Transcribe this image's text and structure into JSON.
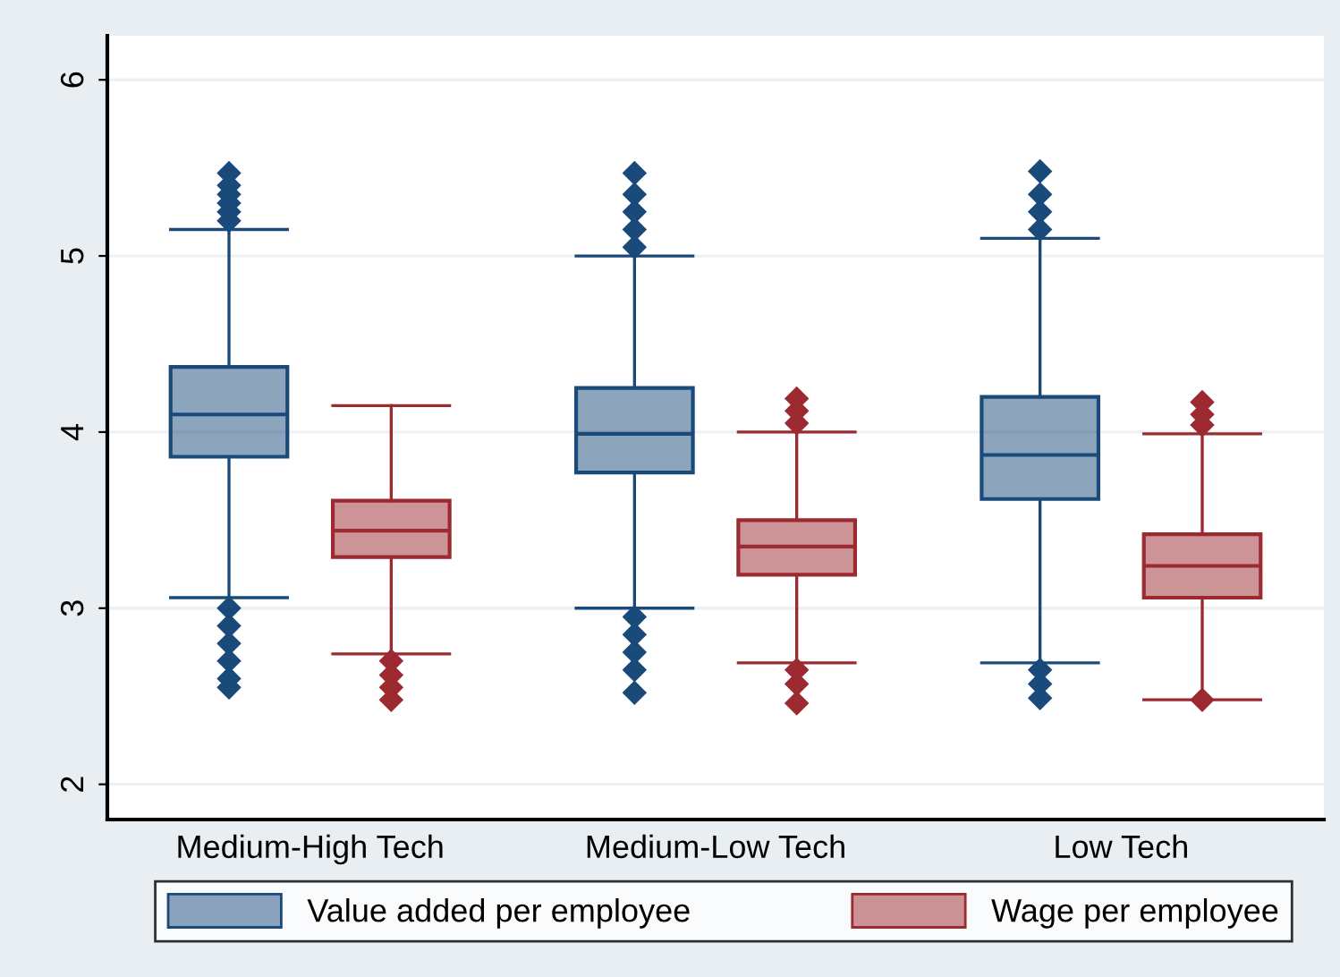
{
  "chart_data": {
    "type": "box",
    "categories": [
      "Medium-High Tech",
      "Medium-Low Tech",
      "Low Tech"
    ],
    "series": [
      {
        "name": "Value added per employee",
        "color": "#1a4a7a",
        "boxes": [
          {
            "low": 3.06,
            "q1": 3.86,
            "median": 4.1,
            "q3": 4.37,
            "high": 5.15,
            "outliers": [
              5.2,
              5.25,
              5.3,
              5.35,
              5.4,
              5.47,
              3.0,
              2.9,
              2.8,
              2.7,
              2.6,
              2.55
            ]
          },
          {
            "low": 3.0,
            "q1": 3.77,
            "median": 3.99,
            "q3": 4.25,
            "high": 5.0,
            "outliers": [
              5.05,
              5.15,
              5.25,
              5.35,
              5.47,
              2.95,
              2.85,
              2.75,
              2.65,
              2.52
            ]
          },
          {
            "low": 2.69,
            "q1": 3.62,
            "median": 3.87,
            "q3": 4.2,
            "high": 5.1,
            "outliers": [
              5.15,
              5.25,
              5.35,
              5.48,
              2.65,
              2.57,
              2.49
            ]
          }
        ]
      },
      {
        "name": "Wage per employee",
        "color": "#9c2a30",
        "boxes": [
          {
            "low": 2.74,
            "q1": 3.29,
            "median": 3.44,
            "q3": 3.61,
            "high": 4.15,
            "outliers": [
              2.7,
              2.62,
              2.55,
              2.48
            ]
          },
          {
            "low": 2.69,
            "q1": 3.19,
            "median": 3.35,
            "q3": 3.5,
            "high": 4.0,
            "outliers": [
              4.05,
              4.12,
              4.19,
              2.65,
              2.57,
              2.46
            ]
          },
          {
            "low": 2.48,
            "q1": 3.06,
            "median": 3.24,
            "q3": 3.42,
            "high": 3.99,
            "outliers": [
              4.04,
              4.1,
              4.17,
              2.48
            ]
          }
        ]
      }
    ],
    "ylim": [
      1.8,
      6.25
    ],
    "yticks": [
      2,
      3,
      4,
      5,
      6
    ],
    "grid": "y",
    "legend": "bottom",
    "marker": "diamond"
  }
}
